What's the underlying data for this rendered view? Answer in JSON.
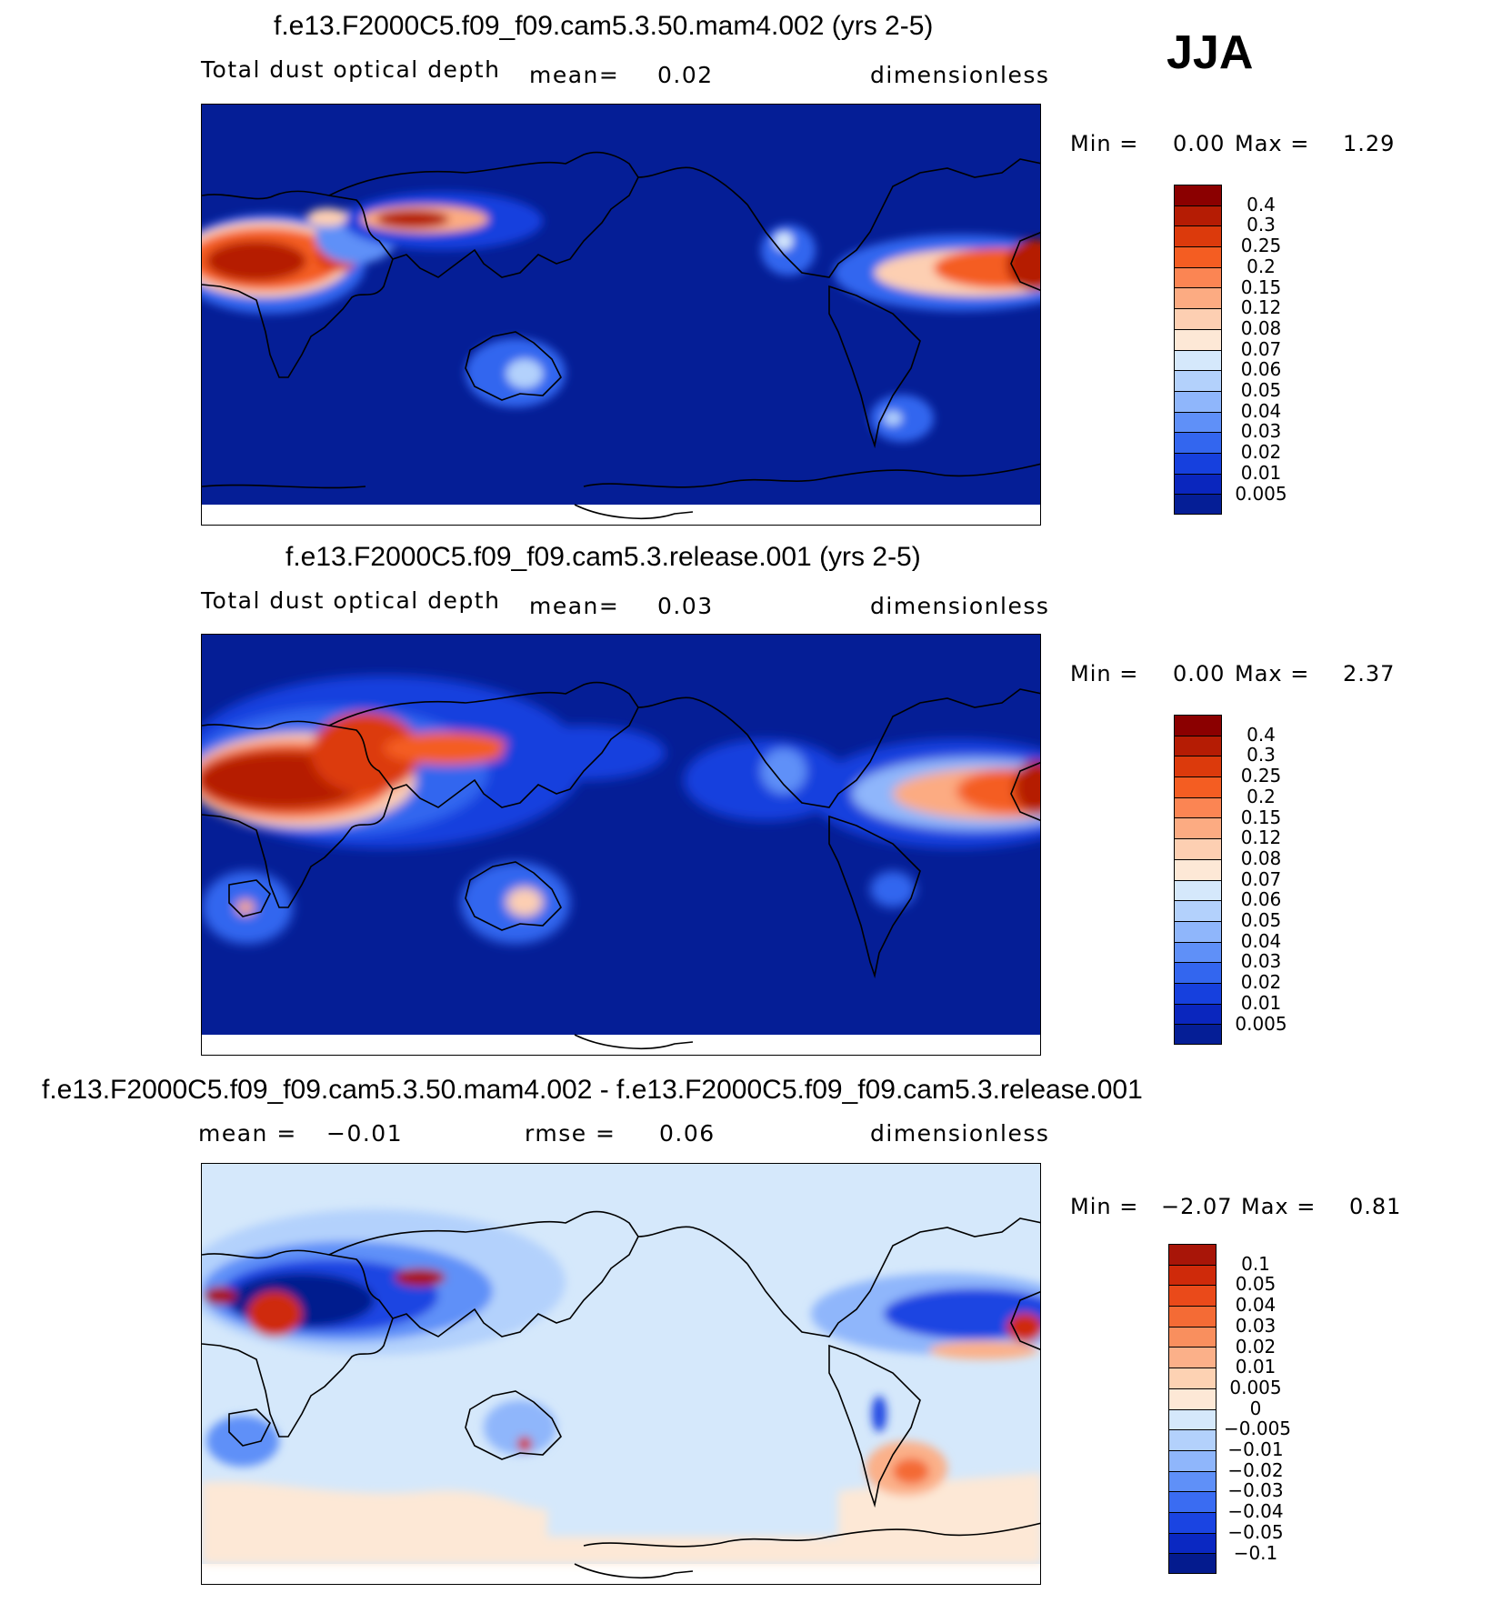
{
  "season": "JJA",
  "units": "dimensionless",
  "panels": [
    {
      "id": "p1",
      "title": "f.e13.F2000C5.f09_f09.cam5.3.50.mam4.002 (yrs 2-5)",
      "variable": "Total dust optical depth",
      "mean_label": "mean=",
      "mean_value": "0.02",
      "units": "dimensionless",
      "min_label": "Min =",
      "min_value": "0.00",
      "max_label": "Max =",
      "max_value": "1.29",
      "levels": [
        "0.4",
        "0.3",
        "0.25",
        "0.2",
        "0.15",
        "0.12",
        "0.08",
        "0.07",
        "0.06",
        "0.05",
        "0.04",
        "0.03",
        "0.02",
        "0.01",
        "0.005"
      ],
      "colors": [
        "#8b0000",
        "#b51c04",
        "#dc3a0c",
        "#f45d22",
        "#fb8553",
        "#fcab82",
        "#fdcfb2",
        "#fde8d6",
        "#d5e8fb",
        "#b3d1fc",
        "#8fb6fb",
        "#5f90f8",
        "#3366ef",
        "#1640de",
        "#0a26be",
        "#051e96"
      ]
    },
    {
      "id": "p2",
      "title": "f.e13.F2000C5.f09_f09.cam5.3.release.001 (yrs 2-5)",
      "variable": "Total dust optical depth",
      "mean_label": "mean=",
      "mean_value": "0.03",
      "units": "dimensionless",
      "min_label": "Min =",
      "min_value": "0.00",
      "max_label": "Max =",
      "max_value": "2.37",
      "levels": [
        "0.4",
        "0.3",
        "0.25",
        "0.2",
        "0.15",
        "0.12",
        "0.08",
        "0.07",
        "0.06",
        "0.05",
        "0.04",
        "0.03",
        "0.02",
        "0.01",
        "0.005"
      ],
      "colors": [
        "#8b0000",
        "#b51c04",
        "#dc3a0c",
        "#f45d22",
        "#fb8553",
        "#fcab82",
        "#fdcfb2",
        "#fde8d6",
        "#d5e8fb",
        "#b3d1fc",
        "#8fb6fb",
        "#5f90f8",
        "#3366ef",
        "#1640de",
        "#0a26be",
        "#051e96"
      ]
    },
    {
      "id": "p3",
      "title": "f.e13.F2000C5.f09_f09.cam5.3.50.mam4.002 - f.e13.F2000C5.f09_f09.cam5.3.release.001",
      "mean_label": "mean =",
      "mean_value": "−0.01",
      "rmse_label": "rmse =",
      "rmse_value": "0.06",
      "units": "dimensionless",
      "min_label": "Min =",
      "min_value": "−2.07",
      "max_label": "Max =",
      "max_value": "0.81",
      "levels": [
        "0.1",
        "0.05",
        "0.04",
        "0.03",
        "0.02",
        "0.01",
        "0.005",
        "0",
        "−0.005",
        "−0.01",
        "−0.02",
        "−0.03",
        "−0.04",
        "−0.05",
        "−0.1"
      ],
      "colors": [
        "#a81508",
        "#cf2a0a",
        "#ea4a1a",
        "#f46b35",
        "#f98f5e",
        "#fbb089",
        "#fdd2b3",
        "#fde8d6",
        "#d5e8fb",
        "#b3d1fc",
        "#8fb6fb",
        "#5f90f8",
        "#3a6cf2",
        "#1a44e2",
        "#0a28c2",
        "#041b8e"
      ]
    }
  ]
}
